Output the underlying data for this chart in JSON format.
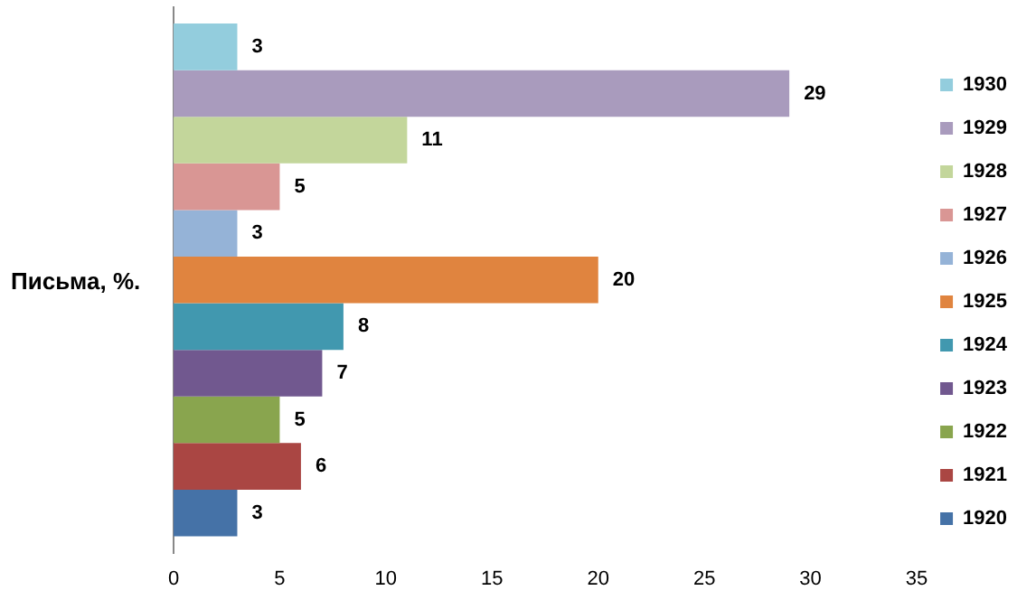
{
  "chart_data": {
    "type": "bar",
    "orientation": "horizontal",
    "ylabel": "Письма, %.",
    "categories": [
      null
    ],
    "series": [
      {
        "name": "1930",
        "color": "#93cddd",
        "values": [
          3
        ]
      },
      {
        "name": "1929",
        "color": "#a99bbd",
        "values": [
          29
        ]
      },
      {
        "name": "1928",
        "color": "#c3d69b",
        "values": [
          11
        ]
      },
      {
        "name": "1927",
        "color": "#d99694",
        "values": [
          5
        ]
      },
      {
        "name": "1926",
        "color": "#95b3d7",
        "values": [
          3
        ]
      },
      {
        "name": "1925",
        "color": "#e0843f",
        "values": [
          20
        ]
      },
      {
        "name": "1924",
        "color": "#4198af",
        "values": [
          8
        ]
      },
      {
        "name": "1923",
        "color": "#71588f",
        "values": [
          7
        ]
      },
      {
        "name": "1922",
        "color": "#89a54e",
        "values": [
          5
        ]
      },
      {
        "name": "1921",
        "color": "#aa4643",
        "values": [
          6
        ]
      },
      {
        "name": "1920",
        "color": "#4572a7",
        "values": [
          3
        ]
      }
    ],
    "xlim": [
      0,
      35
    ],
    "xticks": [
      0,
      5,
      10,
      15,
      20,
      25,
      30,
      35
    ],
    "grid": false,
    "legend": "right",
    "data_labels": true
  }
}
